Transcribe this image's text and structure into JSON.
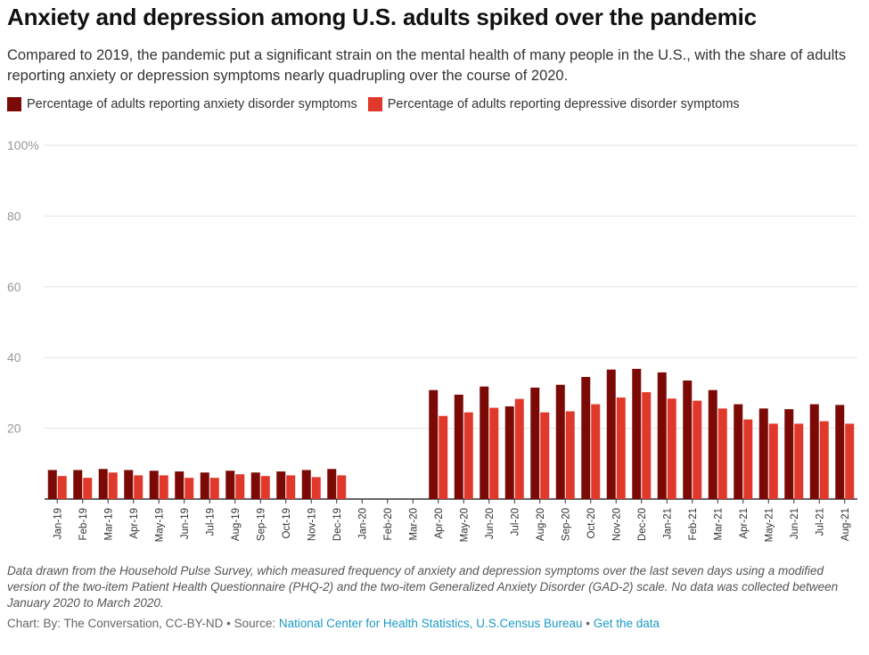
{
  "title": "Anxiety and depression among U.S. adults spiked over the pandemic",
  "subtitle": "Compared to 2019, the pandemic put a significant strain on the mental health of many people in the U.S., with the share of adults reporting anxiety or depression symptoms nearly quadrupling over the course of 2020.",
  "colors": {
    "anxiety": "#7b0a06",
    "depression": "#e0382b",
    "grid": "#e3e3e3",
    "axis": "#333333",
    "tick_label": "#999999"
  },
  "chart_data": {
    "type": "bar",
    "categories": [
      "Jan-19",
      "Feb-19",
      "Mar-19",
      "Apr-19",
      "May-19",
      "Jun-19",
      "Jul-19",
      "Aug-19",
      "Sep-19",
      "Oct-19",
      "Nov-19",
      "Dec-19",
      "Jan-20",
      "Feb-20",
      "Mar-20",
      "Apr-20",
      "May-20",
      "Jun-20",
      "Jul-20",
      "Aug-20",
      "Sep-20",
      "Oct-20",
      "Nov-20",
      "Dec-20",
      "Jan-21",
      "Feb-21",
      "Mar-21",
      "Apr-21",
      "May-21",
      "Jun-21",
      "Jul-21",
      "Aug-21"
    ],
    "series": [
      {
        "name": "Percentage of adults reporting anxiety disorder symptoms",
        "values": [
          8.2,
          8.2,
          8.5,
          8.2,
          8.0,
          7.8,
          7.5,
          8.0,
          7.5,
          7.8,
          8.2,
          8.5,
          null,
          null,
          null,
          30.8,
          29.5,
          31.8,
          26.2,
          31.5,
          32.3,
          34.5,
          36.6,
          36.8,
          35.8,
          33.5,
          30.8,
          26.8,
          25.6,
          25.4,
          26.8,
          26.6
        ]
      },
      {
        "name": "Percentage of adults reporting depressive disorder symptoms",
        "values": [
          6.5,
          6.0,
          7.5,
          6.7,
          6.7,
          6.0,
          6.0,
          7.0,
          6.5,
          6.7,
          6.2,
          6.7,
          null,
          null,
          null,
          23.5,
          24.5,
          25.8,
          28.3,
          24.5,
          24.8,
          26.8,
          28.7,
          30.2,
          28.4,
          27.8,
          25.6,
          22.5,
          21.3,
          21.3,
          22.0,
          21.3
        ]
      }
    ],
    "y_ticks": [
      "100%",
      "80",
      "60",
      "40",
      "20"
    ],
    "y_tick_values": [
      100,
      80,
      60,
      40,
      20
    ],
    "ylim": [
      0,
      100
    ],
    "xlabel": "",
    "ylabel": "",
    "grid": true,
    "legend_position": "top-left"
  },
  "notes": "Data drawn from the Household Pulse Survey, which measured frequency of anxiety and depression symptoms over the last seven days using a modified version of the two-item Patient Health Questionnaire (PHQ-2) and the two-item Generalized Anxiety Disorder (GAD-2) scale. No data was collected between January 2020 to March 2020.",
  "credits": {
    "chart_label": "Chart: By: The Conversation, CC-BY-ND",
    "separator": " • ",
    "source_label": "Source: ",
    "source_link": "National Center for Health Statistics, U.S.Census Bureau",
    "get_data_link": "Get the data"
  }
}
